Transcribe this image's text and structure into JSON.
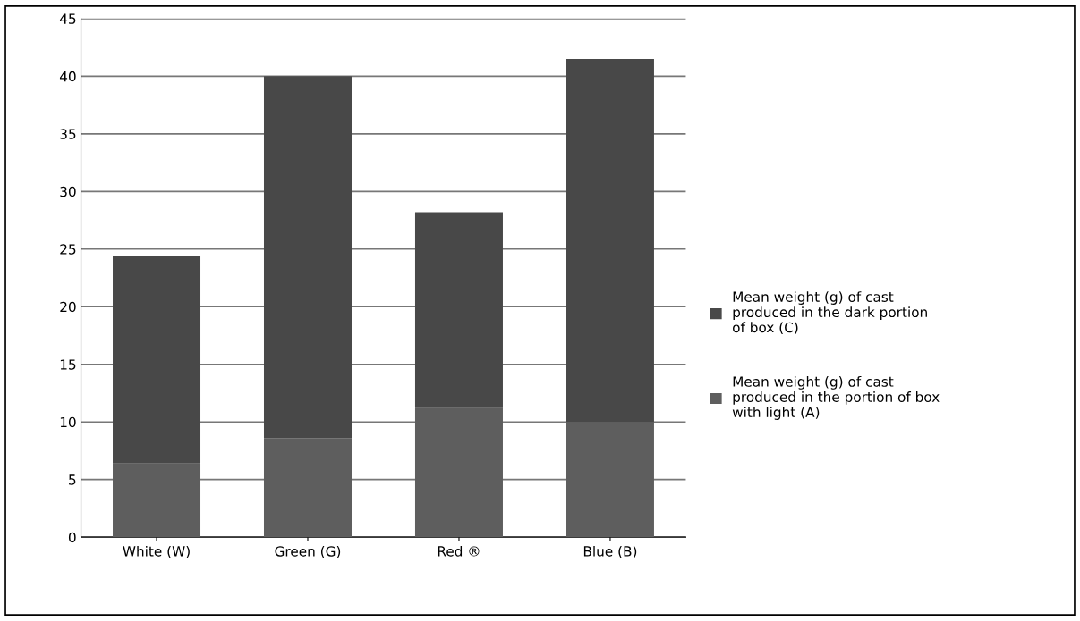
{
  "chart_data": {
    "type": "bar",
    "stacked": true,
    "categories": [
      "White (W)",
      "Green (G)",
      "Red ®",
      "Blue (B)"
    ],
    "series": [
      {
        "name": "Mean weight (g) of cast produced in the portion of box with light (A)",
        "color": "#5e5e5e",
        "values": [
          6.4,
          8.6,
          11.2,
          10.0
        ]
      },
      {
        "name": "Mean weight (g) of cast produced in the dark portion of box (C)",
        "color": "#484848",
        "values": [
          18.0,
          31.4,
          17.0,
          31.5
        ]
      }
    ],
    "ylim": [
      0,
      45
    ],
    "yticks": [
      0,
      5,
      10,
      15,
      20,
      25,
      30,
      35,
      40,
      45
    ],
    "grid": "y",
    "legend": "right"
  }
}
